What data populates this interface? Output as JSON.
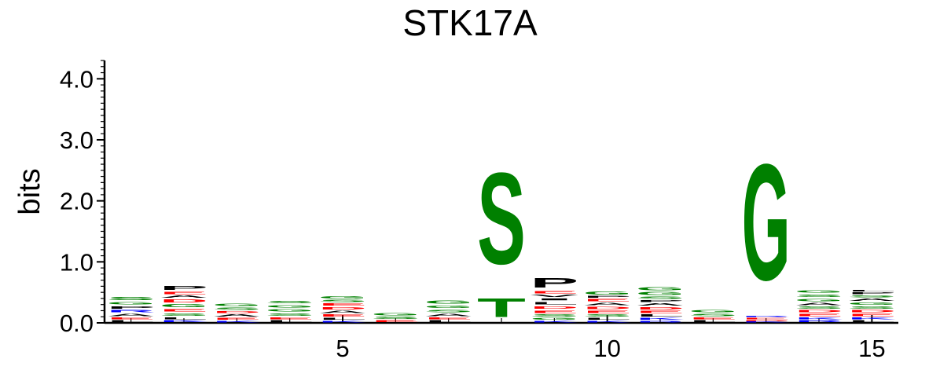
{
  "chart_data": {
    "type": "sequence_logo",
    "title": "STK17A",
    "ylabel": "bits",
    "xlabel": "",
    "ylim": [
      0,
      4.3
    ],
    "xlim": [
      0.5,
      15.5
    ],
    "y_ticks": [
      {
        "value": 0.0,
        "label": "0.0"
      },
      {
        "value": 1.0,
        "label": "1.0"
      },
      {
        "value": 2.0,
        "label": "2.0"
      },
      {
        "value": 3.0,
        "label": "3.0"
      },
      {
        "value": 4.0,
        "label": "4.0"
      }
    ],
    "x_ticks": [
      {
        "value": 5,
        "label": "5"
      },
      {
        "value": 10,
        "label": "10"
      },
      {
        "value": 15,
        "label": "15"
      }
    ],
    "colors": {
      "polar": "#008000",
      "acidic": "#ff0000",
      "basic": "#0000ff",
      "hydrophobic": "#000000",
      "other": "#800080"
    },
    "positions": [
      {
        "position": 1,
        "letters": [
          {
            "aa": "L",
            "bits": 0.05
          },
          {
            "aa": "E",
            "bits": 0.05
          },
          {
            "aa": "A",
            "bits": 0.06
          },
          {
            "aa": "R",
            "bits": 0.06
          },
          {
            "aa": "P",
            "bits": 0.07
          },
          {
            "aa": "G",
            "bits": 0.07
          },
          {
            "aa": "S",
            "bits": 0.08
          }
        ]
      },
      {
        "position": 2,
        "letters": [
          {
            "aa": "K",
            "bits": 0.05
          },
          {
            "aa": "L",
            "bits": 0.05
          },
          {
            "aa": "S",
            "bits": 0.07
          },
          {
            "aa": "E",
            "bits": 0.07
          },
          {
            "aa": "G",
            "bits": 0.08
          },
          {
            "aa": "D",
            "bits": 0.08
          },
          {
            "aa": "A",
            "bits": 0.06
          },
          {
            "aa": "E",
            "bits": 0.06
          },
          {
            "aa": "P",
            "bits": 0.1
          }
        ]
      },
      {
        "position": 3,
        "letters": [
          {
            "aa": "K",
            "bits": 0.04
          },
          {
            "aa": "E",
            "bits": 0.05
          },
          {
            "aa": "A",
            "bits": 0.06
          },
          {
            "aa": "D",
            "bits": 0.05
          },
          {
            "aa": "S",
            "bits": 0.06
          },
          {
            "aa": "G",
            "bits": 0.07
          }
        ]
      },
      {
        "position": 4,
        "letters": [
          {
            "aa": "L",
            "bits": 0.05
          },
          {
            "aa": "E",
            "bits": 0.05
          },
          {
            "aa": "S",
            "bits": 0.07
          },
          {
            "aa": "G",
            "bits": 0.07
          },
          {
            "aa": "G",
            "bits": 0.07
          },
          {
            "aa": "S",
            "bits": 0.07
          }
        ]
      },
      {
        "position": 5,
        "letters": [
          {
            "aa": "K",
            "bits": 0.04
          },
          {
            "aa": "L",
            "bits": 0.05
          },
          {
            "aa": "E",
            "bits": 0.06
          },
          {
            "aa": "A",
            "bits": 0.06
          },
          {
            "aa": "D",
            "bits": 0.06
          },
          {
            "aa": "E",
            "bits": 0.06
          },
          {
            "aa": "S",
            "bits": 0.06
          },
          {
            "aa": "G",
            "bits": 0.06
          }
        ]
      },
      {
        "position": 6,
        "letters": [
          {
            "aa": "E",
            "bits": 0.05
          },
          {
            "aa": "S",
            "bits": 0.06
          },
          {
            "aa": "G",
            "bits": 0.06
          }
        ]
      },
      {
        "position": 7,
        "letters": [
          {
            "aa": "L",
            "bits": 0.05
          },
          {
            "aa": "E",
            "bits": 0.05
          },
          {
            "aa": "A",
            "bits": 0.06
          },
          {
            "aa": "S",
            "bits": 0.07
          },
          {
            "aa": "G",
            "bits": 0.07
          },
          {
            "aa": "G",
            "bits": 0.08
          }
        ]
      },
      {
        "position": 8,
        "letters": [
          {
            "aa": "T",
            "bits": 0.5
          },
          {
            "aa": "S",
            "bits": 2.4
          }
        ]
      },
      {
        "position": 9,
        "letters": [
          {
            "aa": "K",
            "bits": 0.04
          },
          {
            "aa": "G",
            "bits": 0.05
          },
          {
            "aa": "S",
            "bits": 0.06
          },
          {
            "aa": "E",
            "bits": 0.07
          },
          {
            "aa": "D",
            "bits": 0.07
          },
          {
            "aa": "L",
            "bits": 0.07
          },
          {
            "aa": "I",
            "bits": 0.05
          },
          {
            "aa": "V",
            "bits": 0.06
          },
          {
            "aa": "E",
            "bits": 0.06
          },
          {
            "aa": "P",
            "bits": 0.25
          }
        ]
      },
      {
        "position": 10,
        "letters": [
          {
            "aa": "K",
            "bits": 0.04
          },
          {
            "aa": "L",
            "bits": 0.05
          },
          {
            "aa": "S",
            "bits": 0.06
          },
          {
            "aa": "E",
            "bits": 0.06
          },
          {
            "aa": "D",
            "bits": 0.07
          },
          {
            "aa": "A",
            "bits": 0.06
          },
          {
            "aa": "E",
            "bits": 0.06
          },
          {
            "aa": "P",
            "bits": 0.05
          },
          {
            "aa": "G",
            "bits": 0.08
          }
        ]
      },
      {
        "position": 11,
        "letters": [
          {
            "aa": "R",
            "bits": 0.04
          },
          {
            "aa": "K",
            "bits": 0.05
          },
          {
            "aa": "L",
            "bits": 0.06
          },
          {
            "aa": "E",
            "bits": 0.06
          },
          {
            "aa": "D",
            "bits": 0.06
          },
          {
            "aa": "A",
            "bits": 0.06
          },
          {
            "aa": "P",
            "bits": 0.05
          },
          {
            "aa": "S",
            "bits": 0.06
          },
          {
            "aa": "G",
            "bits": 0.08
          },
          {
            "aa": "G",
            "bits": 0.08
          }
        ]
      },
      {
        "position": 12,
        "letters": [
          {
            "aa": "L",
            "bits": 0.05
          },
          {
            "aa": "E",
            "bits": 0.05
          },
          {
            "aa": "S",
            "bits": 0.06
          },
          {
            "aa": "G",
            "bits": 0.07
          }
        ]
      },
      {
        "position": 13,
        "letters": [
          {
            "aa": "K",
            "bits": 0.02
          },
          {
            "aa": "D",
            "bits": 0.03
          },
          {
            "aa": "E",
            "bits": 0.04
          },
          {
            "aa": "R",
            "bits": 0.02
          },
          {
            "aa": "G",
            "bits": 3.05
          }
        ]
      },
      {
        "position": 14,
        "letters": [
          {
            "aa": "R",
            "bits": 0.05
          },
          {
            "aa": "K",
            "bits": 0.05
          },
          {
            "aa": "E",
            "bits": 0.06
          },
          {
            "aa": "D",
            "bits": 0.06
          },
          {
            "aa": "S",
            "bits": 0.06
          },
          {
            "aa": "A",
            "bits": 0.06
          },
          {
            "aa": "G",
            "bits": 0.07
          },
          {
            "aa": "S",
            "bits": 0.07
          },
          {
            "aa": "G",
            "bits": 0.07
          }
        ]
      },
      {
        "position": 15,
        "letters": [
          {
            "aa": "L",
            "bits": 0.05
          },
          {
            "aa": "K",
            "bits": 0.05
          },
          {
            "aa": "E",
            "bits": 0.06
          },
          {
            "aa": "D",
            "bits": 0.06
          },
          {
            "aa": "S",
            "bits": 0.06
          },
          {
            "aa": "G",
            "bits": 0.07
          },
          {
            "aa": "A",
            "bits": 0.06
          },
          {
            "aa": "S",
            "bits": 0.05
          },
          {
            "aa": "P",
            "bits": 0.05
          },
          {
            "aa": "L",
            "bits": 0.04
          }
        ]
      }
    ]
  }
}
